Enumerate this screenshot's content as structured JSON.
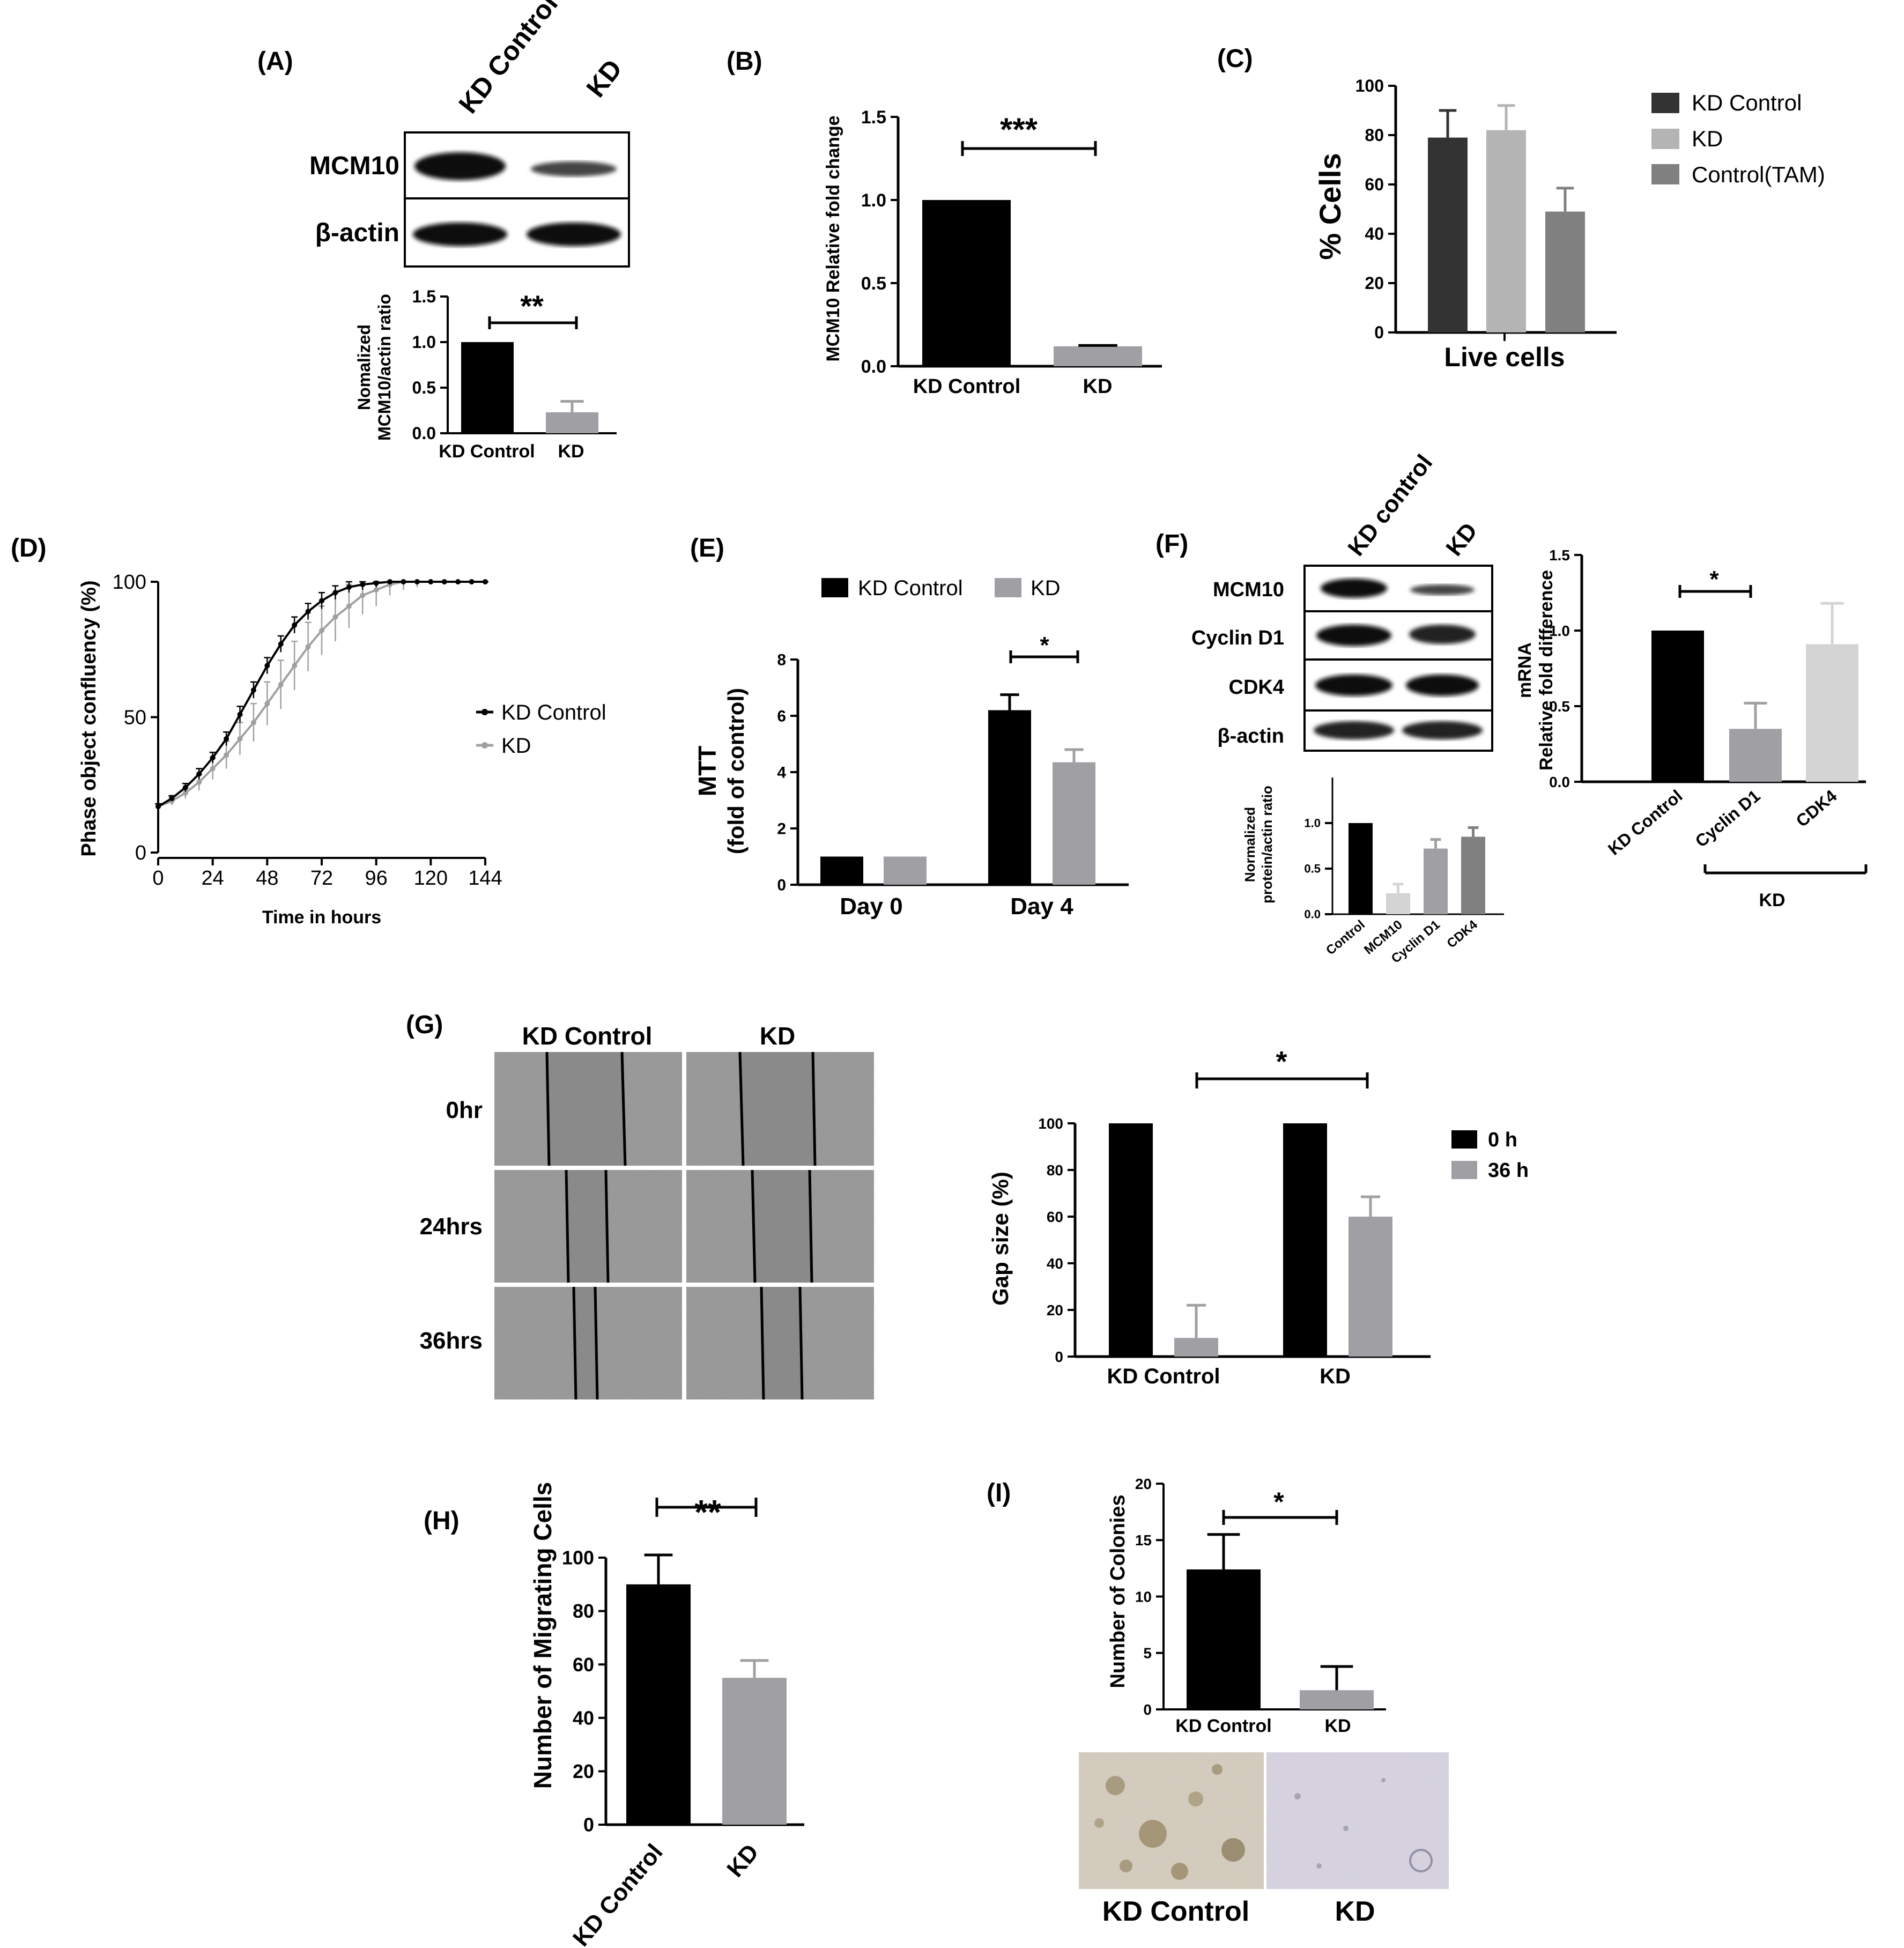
{
  "colors": {
    "black": "#000000",
    "dark_gray": "#333333",
    "gray": "#a0a0a4",
    "light_gray": "#b4b4b4",
    "mid_gray": "#808080",
    "pale_gray": "#d4d4d4"
  },
  "panels": {
    "A": {
      "tag": "(A)",
      "lanes": [
        "KD Control",
        "KD"
      ],
      "blot_rows": [
        "MCM10",
        "β-actin"
      ],
      "ylabel_line1": "Nomalized",
      "ylabel_line2": "MCM10/actin ratio",
      "sig": "**",
      "yticks": [
        "0.0",
        "0.5",
        "1.0",
        "1.5"
      ]
    },
    "B": {
      "tag": "(B)",
      "ylabel": "MCM10 Relative fold change",
      "sig": "***",
      "yticks": [
        "0.0",
        "0.5",
        "1.0",
        "1.5"
      ]
    },
    "C": {
      "tag": "(C)",
      "ylabel": "% Cells",
      "xlabel": "Live cells",
      "yticks": [
        "0",
        "20",
        "40",
        "60",
        "80",
        "100"
      ],
      "legend": [
        "KD Control",
        "KD",
        "Control(TAM)"
      ]
    },
    "D": {
      "tag": "(D)",
      "ylabel": "Phase object confluency  (%)",
      "xlabel": "Time in hours",
      "yticks": [
        "0",
        "50",
        "100"
      ],
      "xticks": [
        "0",
        "24",
        "48",
        "72",
        "96",
        "120",
        "144"
      ],
      "legend": [
        "KD Control",
        "KD"
      ]
    },
    "E": {
      "tag": "(E)",
      "ylabel_line1": "MTT",
      "ylabel_line2": "(fold of control)",
      "legend": [
        "KD Control",
        "KD"
      ],
      "sig": "*",
      "yticks": [
        "0",
        "2",
        "4",
        "6",
        "8"
      ]
    },
    "F": {
      "tag": "(F)",
      "lanes": [
        "KD control",
        "KD"
      ],
      "blot_rows": [
        "MCM10",
        "Cyclin D1",
        "CDK4",
        "β-actin"
      ],
      "ylabel_line1": "Normalized",
      "ylabel_line2": "protein/actin ratio",
      "yticks": [
        "0.0",
        "0.5",
        "1.0"
      ],
      "right_ylabel_line1": "mRNA",
      "right_ylabel_line2": "Relative fold difference",
      "right_yticks": [
        "0.0",
        "0.5",
        "1.0",
        "1.5"
      ],
      "right_sig": "*",
      "group_label": "KD"
    },
    "G": {
      "tag": "(G)",
      "columns": [
        "KD Control",
        "KD"
      ],
      "rows": [
        "0hr",
        "24hrs",
        "36hrs"
      ],
      "ylabel": "Gap size (%)",
      "legend": [
        "0 h",
        "36 h"
      ],
      "sig": "*",
      "yticks": [
        "0",
        "20",
        "40",
        "60",
        "80",
        "100"
      ]
    },
    "H": {
      "tag": "(H)",
      "ylabel": "Number of Migrating Cells",
      "sig": "**",
      "yticks": [
        "0",
        "20",
        "40",
        "60",
        "80",
        "100"
      ]
    },
    "I": {
      "tag": "(I)",
      "ylabel": "Number of Colonies",
      "sig": "*",
      "yticks": [
        "0",
        "5",
        "10",
        "15",
        "20"
      ],
      "image_labels": [
        "KD Control",
        "KD"
      ]
    }
  },
  "chart_data": [
    {
      "panel": "A",
      "type": "bar",
      "categories": [
        "KD Control",
        "KD"
      ],
      "values": [
        1.0,
        0.23
      ],
      "errors": [
        0,
        0.12
      ],
      "ylim": [
        0,
        1.5
      ]
    },
    {
      "panel": "B",
      "type": "bar",
      "categories": [
        "KD Control",
        "KD"
      ],
      "values": [
        1.0,
        0.12
      ],
      "errors": [
        0,
        0.005
      ],
      "ylim": [
        0,
        1.5
      ]
    },
    {
      "panel": "C",
      "type": "bar",
      "categories": [
        "Live cells"
      ],
      "series": [
        {
          "name": "KD Control",
          "values": [
            79
          ],
          "errors": [
            11
          ]
        },
        {
          "name": "KD",
          "values": [
            82
          ],
          "errors": [
            10
          ]
        },
        {
          "name": "Control(TAM)",
          "values": [
            49
          ],
          "errors": [
            9.5
          ]
        }
      ],
      "ylim": [
        0,
        100
      ]
    },
    {
      "panel": "D",
      "type": "line",
      "xlim": [
        0,
        144
      ],
      "ylim": [
        0,
        100
      ],
      "series": [
        {
          "name": "KD Control",
          "x": [
            0,
            6,
            12,
            18,
            24,
            30,
            36,
            42,
            48,
            54,
            60,
            66,
            72,
            78,
            84,
            90,
            96,
            102,
            108,
            114,
            120,
            126,
            132,
            138,
            144
          ],
          "y": [
            17,
            20,
            24,
            29,
            35,
            42,
            51,
            60,
            69,
            77,
            84,
            89,
            93,
            96,
            98,
            99,
            99.5,
            100,
            100,
            100,
            100,
            100,
            100,
            100,
            100
          ],
          "err": [
            1,
            1,
            1.5,
            2,
            2,
            2.5,
            3,
            3,
            3,
            3,
            3,
            3,
            3,
            2.5,
            2,
            2,
            1.5,
            1,
            1,
            1,
            0.5,
            0.5,
            0.5,
            0.5,
            0.5
          ]
        },
        {
          "name": "KD",
          "x": [
            0,
            6,
            12,
            18,
            24,
            30,
            36,
            42,
            48,
            54,
            60,
            66,
            72,
            78,
            84,
            90,
            96,
            102,
            108,
            114,
            120,
            126,
            132,
            138,
            144
          ],
          "y": [
            17,
            19,
            22,
            26,
            31,
            36,
            42,
            48,
            55,
            62,
            69,
            76,
            82,
            87,
            91,
            95,
            97,
            99,
            100,
            100,
            100,
            100,
            100,
            100,
            100
          ],
          "err": [
            1,
            1.5,
            2,
            3,
            4,
            5,
            6,
            7,
            8,
            9,
            9,
            9,
            9,
            9,
            8,
            7,
            6,
            4,
            3,
            2,
            1,
            1,
            0.5,
            0.5,
            0.5
          ]
        }
      ]
    },
    {
      "panel": "E",
      "type": "bar",
      "categories": [
        "Day 0",
        "Day 4"
      ],
      "series": [
        {
          "name": "KD Control",
          "values": [
            1.0,
            6.2
          ],
          "errors": [
            0,
            0.55
          ]
        },
        {
          "name": "KD",
          "values": [
            1.0,
            4.35
          ],
          "errors": [
            0,
            0.45
          ]
        }
      ],
      "ylim": [
        0,
        8
      ]
    },
    {
      "panel": "F-protein",
      "type": "bar",
      "categories": [
        "Control",
        "MCM10",
        "Cyclin D1",
        "CDK4"
      ],
      "values": [
        1.0,
        0.23,
        0.72,
        0.85
      ],
      "errors": [
        0,
        0.1,
        0.1,
        0.1
      ],
      "ylim": [
        0,
        1.5
      ]
    },
    {
      "panel": "F-mRNA",
      "type": "bar",
      "categories": [
        "KD Control",
        "Cyclin D1",
        "CDK4"
      ],
      "values": [
        1.0,
        0.35,
        0.91
      ],
      "errors": [
        0,
        0.17,
        0.27
      ],
      "ylim": [
        0,
        1.5
      ]
    },
    {
      "panel": "G",
      "type": "bar",
      "categories": [
        "KD Control",
        "KD"
      ],
      "series": [
        {
          "name": "0 h",
          "values": [
            100,
            100
          ],
          "errors": [
            0,
            0
          ]
        },
        {
          "name": "36 h",
          "values": [
            8,
            60
          ],
          "errors": [
            14,
            8.5
          ]
        }
      ],
      "ylim": [
        0,
        100
      ]
    },
    {
      "panel": "H",
      "type": "bar",
      "categories": [
        "KD Control",
        "KD"
      ],
      "values": [
        90,
        55
      ],
      "errors": [
        11,
        6.5
      ],
      "ylim": [
        0,
        100
      ]
    },
    {
      "panel": "I",
      "type": "bar",
      "categories": [
        "KD Control",
        "KD"
      ],
      "values": [
        12.4,
        1.7
      ],
      "errors": [
        3.1,
        2.1
      ],
      "ylim": [
        0,
        20
      ]
    }
  ]
}
